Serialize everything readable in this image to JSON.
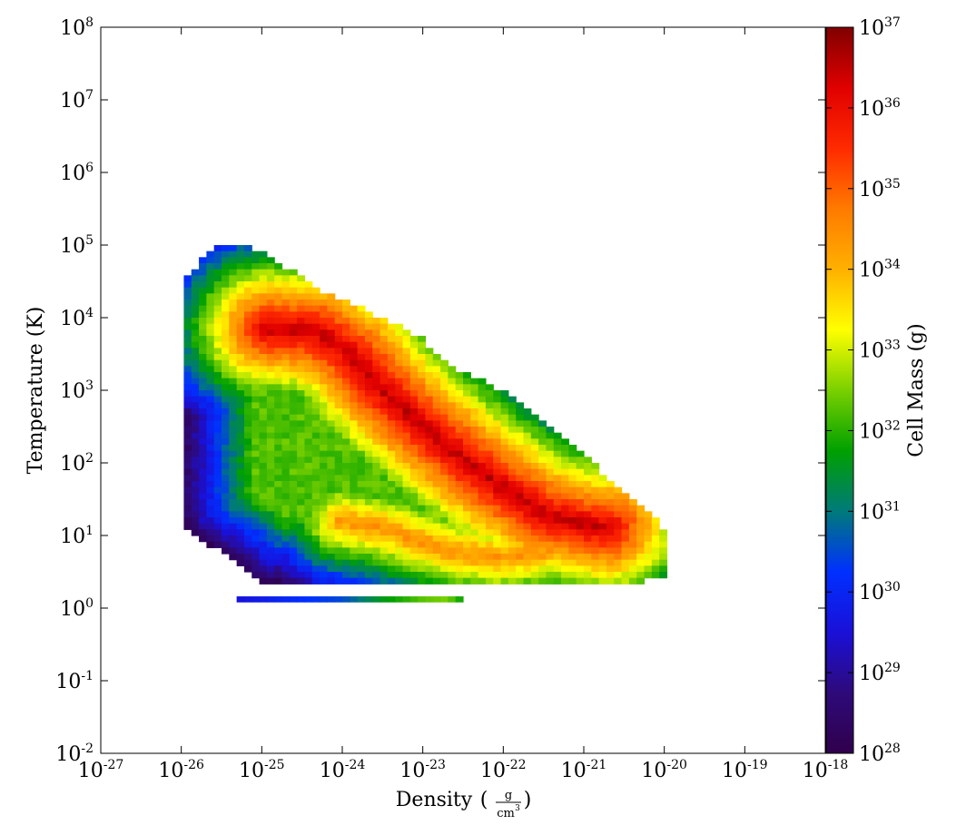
{
  "chart_data": {
    "type": "heatmap",
    "title": "",
    "xlabel": "Density",
    "xunit_numerator": "g",
    "xunit_denominator": "cm",
    "xunit_denominator_exp": "3",
    "ylabel": "Temperature  (K)",
    "colorbar_label": "Cell Mass  (g)",
    "x_scale": "log",
    "y_scale": "log",
    "colorbar_scale": "log",
    "x_log_range": [
      -27,
      -18
    ],
    "y_log_range": [
      -2,
      8
    ],
    "colorbar_log_range": [
      28,
      37
    ],
    "x_ticks": [
      {
        "base": "10",
        "exp": "-27"
      },
      {
        "base": "10",
        "exp": "-26"
      },
      {
        "base": "10",
        "exp": "-25"
      },
      {
        "base": "10",
        "exp": "-24"
      },
      {
        "base": "10",
        "exp": "-23"
      },
      {
        "base": "10",
        "exp": "-22"
      },
      {
        "base": "10",
        "exp": "-21"
      },
      {
        "base": "10",
        "exp": "-20"
      },
      {
        "base": "10",
        "exp": "-19"
      },
      {
        "base": "10",
        "exp": "-18"
      }
    ],
    "y_ticks": [
      {
        "base": "10",
        "exp": "-2"
      },
      {
        "base": "10",
        "exp": "-1"
      },
      {
        "base": "10",
        "exp": "0"
      },
      {
        "base": "10",
        "exp": "1"
      },
      {
        "base": "10",
        "exp": "2"
      },
      {
        "base": "10",
        "exp": "3"
      },
      {
        "base": "10",
        "exp": "4"
      },
      {
        "base": "10",
        "exp": "5"
      },
      {
        "base": "10",
        "exp": "6"
      },
      {
        "base": "10",
        "exp": "7"
      },
      {
        "base": "10",
        "exp": "8"
      }
    ],
    "colorbar_ticks": [
      {
        "base": "10",
        "exp": "28"
      },
      {
        "base": "10",
        "exp": "29"
      },
      {
        "base": "10",
        "exp": "30"
      },
      {
        "base": "10",
        "exp": "31"
      },
      {
        "base": "10",
        "exp": "32"
      },
      {
        "base": "10",
        "exp": "33"
      },
      {
        "base": "10",
        "exp": "34"
      },
      {
        "base": "10",
        "exp": "35"
      },
      {
        "base": "10",
        "exp": "36"
      },
      {
        "base": "10",
        "exp": "37"
      }
    ],
    "colormap": [
      "#30004c",
      "#2e0a7a",
      "#1a10d8",
      "#0030ff",
      "#007a7a",
      "#00a000",
      "#7ad000",
      "#ffff00",
      "#ffb000",
      "#ff7a00",
      "#ff2a00",
      "#e00000",
      "#800000"
    ],
    "grid": false,
    "outline_points": [
      [
        -26.0,
        4.5
      ],
      [
        -25.5,
        5.05
      ],
      [
        -25.05,
        4.95
      ],
      [
        -24.2,
        4.35
      ],
      [
        -23.3,
        3.9
      ],
      [
        -23.0,
        3.7
      ],
      [
        -22.6,
        3.3
      ],
      [
        -22.0,
        3.0
      ],
      [
        -21.5,
        2.6
      ],
      [
        -21.0,
        2.1
      ],
      [
        -20.4,
        1.5
      ],
      [
        -19.95,
        1.05
      ],
      [
        -19.95,
        0.45
      ],
      [
        -20.3,
        0.35
      ],
      [
        -25.0,
        0.35
      ],
      [
        -25.4,
        0.7
      ],
      [
        -25.8,
        0.95
      ],
      [
        -26.0,
        1.2
      ]
    ],
    "ridges": [
      {
        "name": "",
        "points": [
          [
            -24.9,
            3.85
          ],
          [
            -24.3,
            3.8
          ],
          [
            -23.9,
            3.5
          ],
          [
            -23.5,
            3.0
          ],
          [
            -23.0,
            2.5
          ],
          [
            -22.5,
            2.05
          ],
          [
            -22.0,
            1.65
          ],
          [
            -21.5,
            1.3
          ],
          [
            -21.0,
            1.15
          ],
          [
            -20.7,
            1.1
          ]
        ],
        "peak_log_mass": 36.5
      },
      {
        "name": "",
        "points": [
          [
            -24.0,
            1.2
          ],
          [
            -23.5,
            1.1
          ],
          [
            -23.0,
            0.9
          ],
          [
            -22.5,
            0.75
          ],
          [
            -22.0,
            0.7
          ],
          [
            -21.0,
            0.85
          ],
          [
            -20.4,
            1.05
          ]
        ],
        "peak_log_mass": 34.5
      }
    ],
    "low_temperature_strip": {
      "y_log": 0.12,
      "points": [
        [
          -25.35,
          29.5
        ],
        [
          -25.0,
          29.8
        ],
        [
          -24.5,
          30.2
        ],
        [
          -24.0,
          30.5
        ],
        [
          -23.5,
          31.6
        ],
        [
          -23.0,
          32.3
        ],
        [
          -22.7,
          32.5
        ],
        [
          -22.5,
          31.7
        ]
      ]
    }
  }
}
